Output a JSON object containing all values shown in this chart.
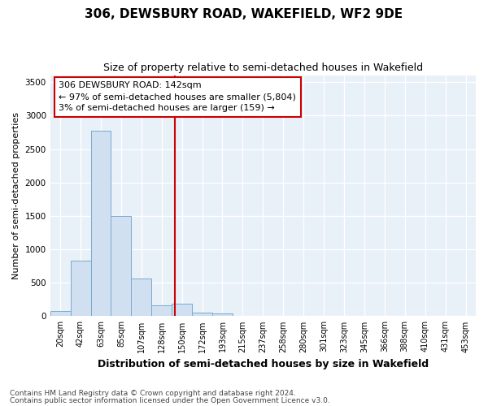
{
  "title1": "306, DEWSBURY ROAD, WAKEFIELD, WF2 9DE",
  "title2": "Size of property relative to semi-detached houses in Wakefield",
  "xlabel": "Distribution of semi-detached houses by size in Wakefield",
  "ylabel": "Number of semi-detached properties",
  "footnote1": "Contains HM Land Registry data © Crown copyright and database right 2024.",
  "footnote2": "Contains public sector information licensed under the Open Government Licence v3.0.",
  "annotation_line1": "306 DEWSBURY ROAD: 142sqm",
  "annotation_line2": "← 97% of semi-detached houses are smaller (5,804)",
  "annotation_line3": "3% of semi-detached houses are larger (159) →",
  "property_value": 142,
  "bar_categories": [
    "20sqm",
    "42sqm",
    "63sqm",
    "85sqm",
    "107sqm",
    "128sqm",
    "150sqm",
    "172sqm",
    "193sqm",
    "215sqm",
    "237sqm",
    "258sqm",
    "280sqm",
    "301sqm",
    "323sqm",
    "345sqm",
    "366sqm",
    "388sqm",
    "410sqm",
    "431sqm",
    "453sqm"
  ],
  "bar_values": [
    75,
    830,
    2780,
    1500,
    560,
    165,
    190,
    55,
    40,
    8,
    2,
    0,
    0,
    0,
    0,
    0,
    0,
    0,
    0,
    0,
    0
  ],
  "bar_color": "#d0e0f0",
  "bar_edge_color": "#7aaad0",
  "property_line_color": "#cc0000",
  "annotation_box_color": "#ffffff",
  "annotation_box_edge": "#cc0000",
  "plot_bg_color": "#e8f0f8",
  "fig_bg_color": "#ffffff",
  "grid_color": "#ffffff",
  "ylim": [
    0,
    3600
  ],
  "yticks": [
    0,
    500,
    1000,
    1500,
    2000,
    2500,
    3000,
    3500
  ],
  "title1_fontsize": 11,
  "title2_fontsize": 9,
  "ylabel_fontsize": 8,
  "xlabel_fontsize": 9,
  "tick_fontsize": 7,
  "annotation_fontsize": 8,
  "footnote_fontsize": 6.5
}
